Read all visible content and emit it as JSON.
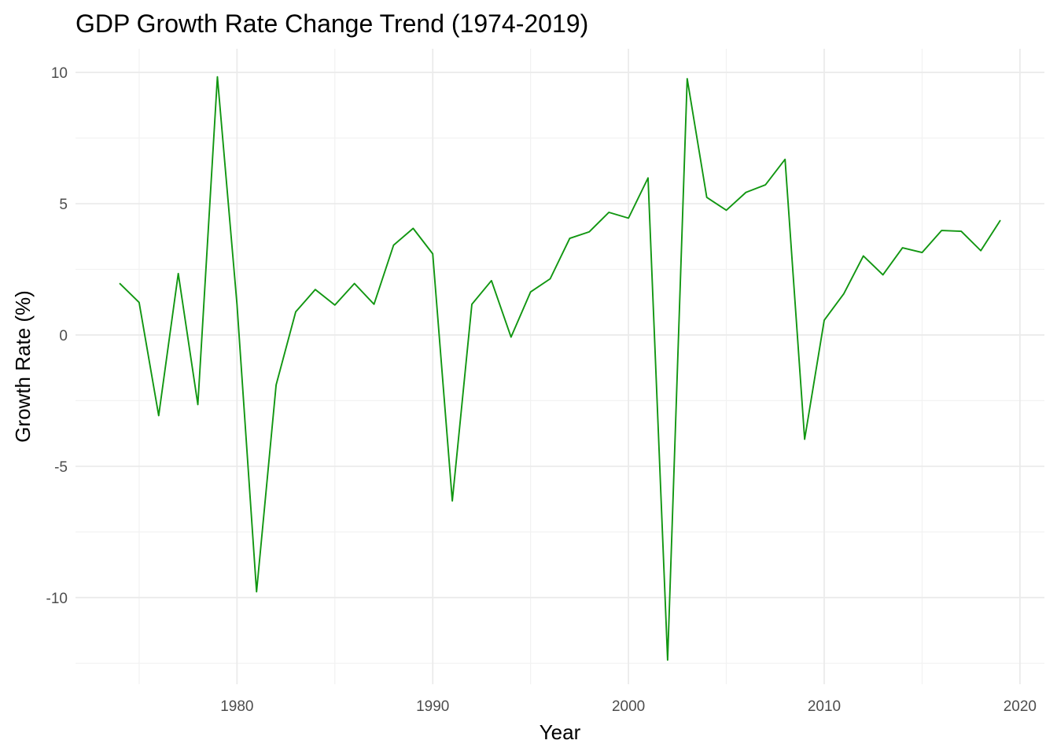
{
  "chart_data": {
    "type": "line",
    "title": "GDP Growth Rate Change Trend (1974-2019)",
    "xlabel": "Year",
    "ylabel": "Growth Rate (%)",
    "xlim": [
      1971.75,
      2021.25
    ],
    "ylim": [
      -13.3,
      10.9
    ],
    "x_ticks": [
      1980,
      1990,
      2000,
      2010,
      2020
    ],
    "x_minor_ticks": [
      1975,
      1985,
      1995,
      2005,
      2015
    ],
    "y_ticks": [
      -10,
      -5,
      0,
      5,
      10
    ],
    "y_minor_ticks": [
      -12.5,
      -7.5,
      -2.5,
      2.5,
      7.5
    ],
    "grid": true,
    "line_color": "#119611",
    "series": [
      {
        "x": [
          1974,
          1975,
          1976,
          1977,
          1978,
          1979,
          1980,
          1981,
          1982,
          1983,
          1984,
          1985,
          1986,
          1987,
          1988,
          1989,
          1990,
          1991,
          1992,
          1993,
          1994,
          1995,
          1996,
          1997,
          1998,
          1999,
          2000,
          2001,
          2002,
          2003,
          2004,
          2005,
          2006,
          2007,
          2008,
          2009,
          2010,
          2011,
          2012,
          2013,
          2014,
          2015,
          2016,
          2017,
          2018,
          2019
        ],
        "values": [
          1.97,
          1.24,
          -3.07,
          2.34,
          -2.65,
          9.83,
          1.17,
          -9.78,
          -1.9,
          0.88,
          1.73,
          1.14,
          1.96,
          1.17,
          3.42,
          4.06,
          3.09,
          -6.32,
          1.17,
          2.07,
          -0.08,
          1.64,
          2.14,
          3.68,
          3.93,
          4.67,
          4.45,
          5.98,
          -12.38,
          9.76,
          5.24,
          4.75,
          5.43,
          5.72,
          6.69,
          -3.97,
          0.56,
          1.57,
          3.01,
          2.29,
          3.32,
          3.14,
          3.98,
          3.95,
          3.21,
          4.37
        ]
      }
    ]
  }
}
